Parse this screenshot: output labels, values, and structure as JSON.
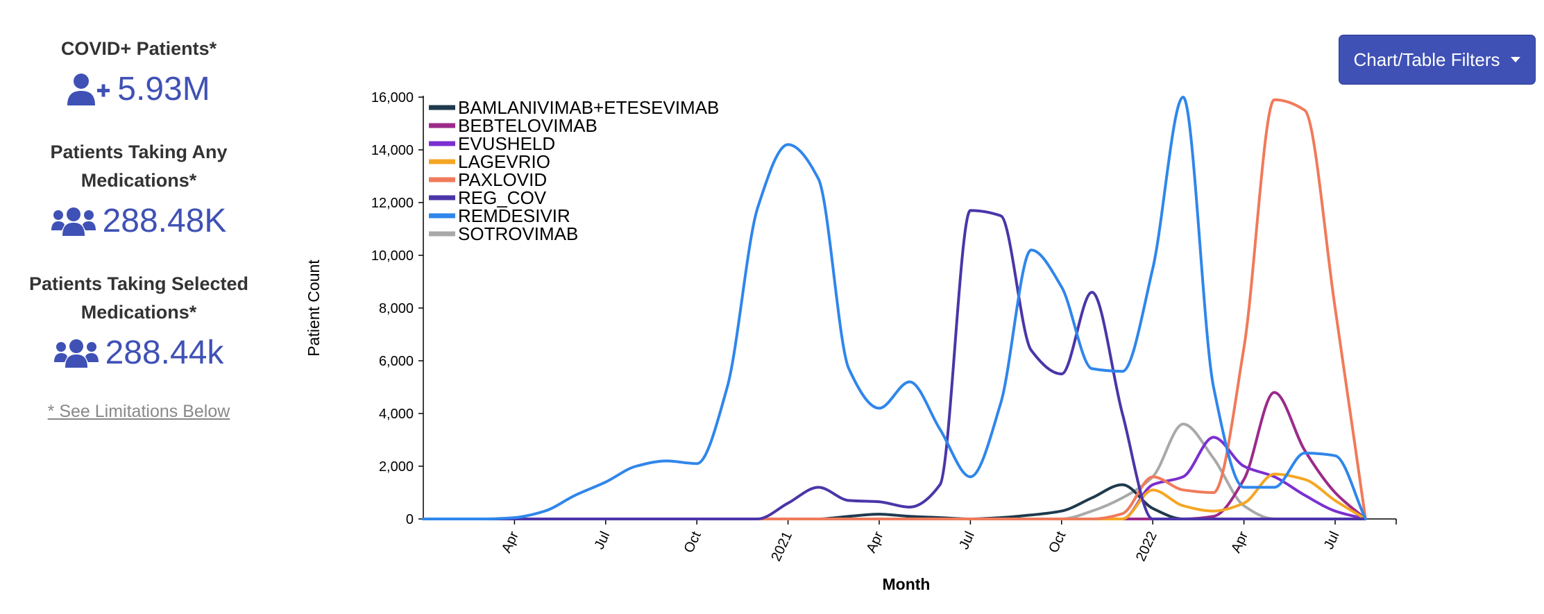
{
  "stats": [
    {
      "label": "COVID+ Patients*",
      "value": "5.93M",
      "icon": "user-plus-icon"
    },
    {
      "label": "Patients Taking Any Medications*",
      "value": "288.48K",
      "icon": "users-icon"
    },
    {
      "label": "Patients Taking Selected Medications*",
      "value": "288.44k",
      "icon": "users-icon"
    }
  ],
  "limitations_link": "* See Limitations Below",
  "filter_button": {
    "label": "Chart/Table Filters",
    "color": "#3f51b5"
  },
  "chart_data": {
    "type": "line",
    "xlabel": "Month",
    "ylabel": "Patient Count",
    "ylim": [
      0,
      16000
    ],
    "yticks": [
      "0",
      "2,000",
      "4,000",
      "6,000",
      "8,000",
      "10,000",
      "12,000",
      "14,000",
      "16,000"
    ],
    "xticks": [
      "Apr",
      "Jul",
      "Oct",
      "2021",
      "Apr",
      "Jul",
      "Oct",
      "2022",
      "Apr",
      "Jul"
    ],
    "x": [
      "2020-01",
      "2020-02",
      "2020-03",
      "2020-04",
      "2020-05",
      "2020-06",
      "2020-07",
      "2020-08",
      "2020-09",
      "2020-10",
      "2020-11",
      "2020-12",
      "2021-01",
      "2021-02",
      "2021-03",
      "2021-04",
      "2021-05",
      "2021-06",
      "2021-07",
      "2021-08",
      "2021-09",
      "2021-10",
      "2021-11",
      "2021-12",
      "2022-01",
      "2022-02",
      "2022-03",
      "2022-04",
      "2022-05",
      "2022-06",
      "2022-07",
      "2022-08"
    ],
    "legend_position": "top-left",
    "series": [
      {
        "name": "BAMLANIVIMAB+ETESEVIMAB",
        "color": "#1f3a4d",
        "values": [
          0,
          0,
          0,
          0,
          0,
          0,
          0,
          0,
          0,
          0,
          0,
          0,
          0,
          0,
          100,
          180,
          100,
          50,
          0,
          50,
          150,
          300,
          800,
          1300,
          400,
          0,
          0,
          0,
          0,
          0,
          0,
          0
        ]
      },
      {
        "name": "BEBTELOVIMAB",
        "color": "#9c2a8a",
        "values": [
          0,
          0,
          0,
          0,
          0,
          0,
          0,
          0,
          0,
          0,
          0,
          0,
          0,
          0,
          0,
          0,
          0,
          0,
          0,
          0,
          0,
          0,
          0,
          0,
          0,
          0,
          100,
          1500,
          4800,
          2600,
          1000,
          0
        ]
      },
      {
        "name": "EVUSHELD",
        "color": "#7b2fd0",
        "values": [
          0,
          0,
          0,
          0,
          0,
          0,
          0,
          0,
          0,
          0,
          0,
          0,
          0,
          0,
          0,
          0,
          0,
          0,
          0,
          0,
          0,
          0,
          0,
          0,
          1300,
          1600,
          3100,
          2000,
          1600,
          900,
          300,
          0
        ]
      },
      {
        "name": "LAGEVRIO",
        "color": "#f5a623",
        "values": [
          0,
          0,
          0,
          0,
          0,
          0,
          0,
          0,
          0,
          0,
          0,
          0,
          0,
          0,
          0,
          0,
          0,
          0,
          0,
          0,
          0,
          0,
          0,
          0,
          1100,
          500,
          300,
          600,
          1700,
          1500,
          700,
          0
        ]
      },
      {
        "name": "PAXLOVID",
        "color": "#f07a5a",
        "values": [
          0,
          0,
          0,
          0,
          0,
          0,
          0,
          0,
          0,
          0,
          0,
          0,
          0,
          0,
          0,
          0,
          0,
          0,
          0,
          0,
          0,
          0,
          0,
          200,
          1600,
          1100,
          1000,
          6500,
          15900,
          15500,
          8000,
          0
        ]
      },
      {
        "name": "REG_COV",
        "color": "#4b35a8",
        "values": [
          0,
          0,
          0,
          0,
          0,
          0,
          0,
          0,
          0,
          0,
          0,
          0,
          600,
          1200,
          700,
          650,
          450,
          1300,
          11700,
          11500,
          6400,
          5500,
          8600,
          4000,
          0,
          0,
          0,
          0,
          0,
          0,
          0,
          0
        ]
      },
      {
        "name": "REMDESIVIR",
        "color": "#2f86eb",
        "values": [
          0,
          0,
          0,
          50,
          300,
          900,
          1400,
          2000,
          2200,
          2100,
          5000,
          11800,
          14200,
          12900,
          5700,
          4200,
          5200,
          3400,
          1600,
          4400,
          10200,
          8800,
          5700,
          5600,
          9500,
          16000,
          5000,
          1200,
          1200,
          2500,
          2400,
          0
        ]
      },
      {
        "name": "SOTROVIMAB",
        "color": "#a9a9a9",
        "values": [
          0,
          0,
          0,
          0,
          0,
          0,
          0,
          0,
          0,
          0,
          0,
          0,
          0,
          0,
          0,
          0,
          0,
          0,
          0,
          0,
          0,
          0,
          300,
          800,
          1600,
          3600,
          2300,
          500,
          0,
          0,
          0,
          0
        ]
      }
    ]
  }
}
